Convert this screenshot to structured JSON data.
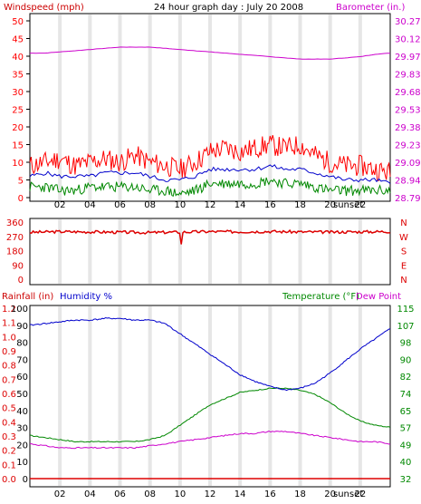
{
  "header": {
    "left_label": "Windspeed (mph)",
    "title": "24 hour graph day : July 20 2008",
    "right_label": "Barometer (in.)"
  },
  "panel3_header": {
    "rain_label": "Rainfall (in)",
    "humidity_label": "Humidity %",
    "temp_label": "Temperature (°F)",
    "dew_label": "Dew Point"
  },
  "colors": {
    "wind": "#ff0000",
    "gust_avg": "#0000cc",
    "wind_low": "#008800",
    "barometer": "#cc00cc",
    "direction": "#dd0000",
    "humidity": "#0000cc",
    "temperature": "#008800",
    "dewpoint": "#cc00cc",
    "rain": "#dd0000"
  },
  "chart_data": [
    {
      "type": "line",
      "name": "wind_barometer",
      "x_ticks": [
        "02",
        "04",
        "06",
        "08",
        "10",
        "12",
        "14",
        "16",
        "18",
        "20",
        "22"
      ],
      "x_annotation": "sunset",
      "y_left_ticks": [
        "0",
        "5",
        "10",
        "15",
        "20",
        "25",
        "30",
        "35",
        "40",
        "45",
        "50"
      ],
      "y_right_ticks": [
        "28.79",
        "28.94",
        "29.09",
        "29.23",
        "29.38",
        "29.53",
        "29.68",
        "29.83",
        "29.97",
        "30.12",
        "30.27"
      ],
      "ylim_left": [
        0,
        50
      ],
      "hours": [
        0,
        1,
        2,
        3,
        4,
        5,
        6,
        7,
        8,
        9,
        10,
        11,
        12,
        13,
        14,
        15,
        16,
        17,
        18,
        19,
        20,
        21,
        22,
        23,
        24
      ],
      "windspeed": [
        9,
        10,
        11,
        9,
        10,
        11,
        10,
        12,
        10,
        9,
        8,
        10,
        13,
        14,
        13,
        14,
        15,
        14,
        15,
        12,
        10,
        9,
        9,
        8,
        7
      ],
      "average": [
        6,
        7,
        6,
        6,
        6,
        7,
        7,
        7,
        6,
        5,
        5,
        6,
        8,
        8,
        8,
        8,
        9,
        8,
        8,
        7,
        6,
        5,
        5,
        5,
        4
      ],
      "low": [
        3,
        3,
        2,
        2,
        3,
        3,
        3,
        3,
        2,
        2,
        1,
        2,
        4,
        4,
        4,
        4,
        5,
        4,
        4,
        3,
        2,
        2,
        2,
        2,
        2
      ],
      "barometer": [
        30.0,
        30.0,
        30.01,
        30.02,
        30.03,
        30.04,
        30.05,
        30.05,
        30.05,
        30.04,
        30.03,
        30.02,
        30.01,
        30.0,
        29.99,
        29.98,
        29.97,
        29.96,
        29.95,
        29.95,
        29.95,
        29.96,
        29.97,
        29.99,
        30.0
      ]
    },
    {
      "type": "scatter",
      "name": "wind_direction",
      "x_ticks": [
        "02",
        "04",
        "06",
        "08",
        "10",
        "12",
        "14",
        "16",
        "18",
        "20",
        "22"
      ],
      "y_left_ticks": [
        "0",
        "90",
        "180",
        "270",
        "360"
      ],
      "y_right_ticks": [
        "N",
        "E",
        "S",
        "W",
        "N"
      ],
      "ylim": [
        0,
        360
      ],
      "hours": [
        0,
        2,
        4,
        6,
        8,
        10,
        12,
        14,
        16,
        18,
        20,
        22,
        24
      ],
      "direction": [
        295,
        300,
        298,
        296,
        294,
        297,
        300,
        299,
        301,
        298,
        297,
        299,
        300
      ]
    },
    {
      "type": "line",
      "name": "humidity_temperature",
      "x_ticks": [
        "02",
        "04",
        "06",
        "08",
        "10",
        "12",
        "14",
        "16",
        "18",
        "20",
        "22"
      ],
      "x_annotation": "sunset",
      "y_left_ticks": [
        "0.0",
        "0.1",
        "0.2",
        "0.3",
        "0.4",
        "0.5",
        "0.6",
        "0.7",
        "0.8",
        "0.9",
        "1.0",
        "1.1",
        "1.2"
      ],
      "y_humidity_ticks": [
        "0",
        "10",
        "20",
        "30",
        "40",
        "50",
        "60",
        "70",
        "80",
        "90",
        "100"
      ],
      "y_right_ticks": [
        "32",
        "40",
        "49",
        "57",
        "65",
        "74",
        "82",
        "90",
        "98",
        "107",
        "115"
      ],
      "hours": [
        0,
        1,
        2,
        3,
        4,
        5,
        6,
        7,
        8,
        9,
        10,
        11,
        12,
        13,
        14,
        15,
        16,
        17,
        18,
        19,
        20,
        21,
        22,
        23,
        24
      ],
      "humidity": [
        90,
        91,
        92,
        93,
        93,
        94,
        94,
        93,
        93,
        91,
        85,
        79,
        73,
        67,
        61,
        57,
        54,
        52,
        53,
        56,
        62,
        69,
        76,
        82,
        88
      ],
      "temperature": [
        53,
        52,
        51,
        50,
        50,
        50,
        50,
        50,
        51,
        53,
        58,
        63,
        68,
        71,
        74,
        75,
        76,
        76,
        75,
        73,
        69,
        64,
        60,
        58,
        57
      ],
      "dewpoint": [
        49,
        48,
        47,
        47,
        47,
        47,
        47,
        47,
        48,
        49,
        50,
        51,
        52,
        53,
        54,
        54,
        55,
        55,
        54,
        53,
        52,
        51,
        50,
        50,
        49
      ],
      "rainfall": [
        0,
        0,
        0,
        0,
        0,
        0,
        0,
        0,
        0,
        0,
        0,
        0,
        0,
        0,
        0,
        0,
        0,
        0,
        0,
        0,
        0,
        0,
        0,
        0,
        0
      ]
    }
  ]
}
